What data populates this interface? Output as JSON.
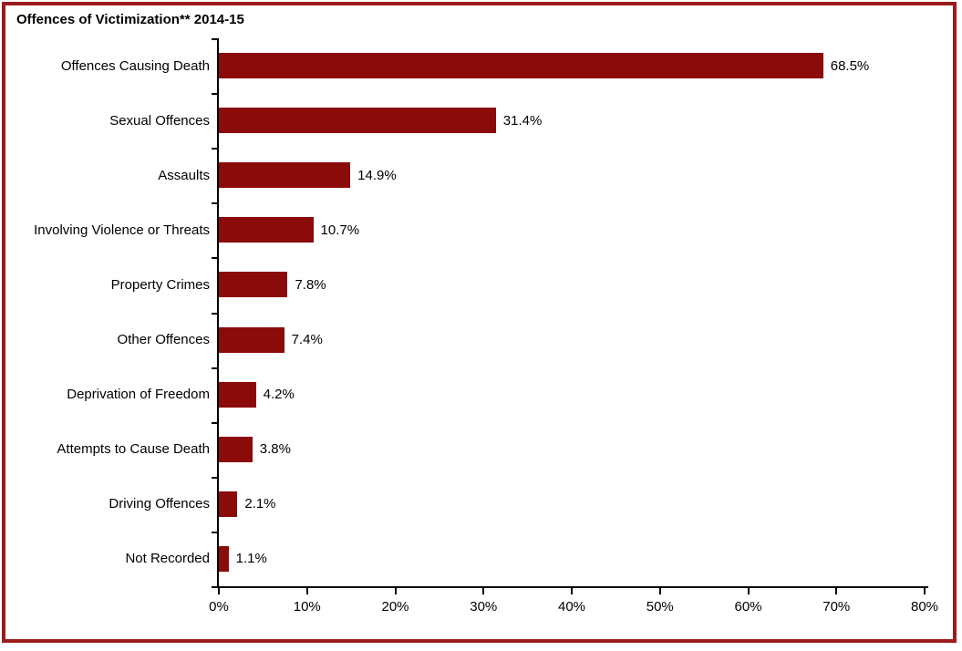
{
  "page": {
    "title": "Offences of Victimization** 2014-15"
  },
  "chart_data": {
    "type": "bar",
    "orientation": "horizontal",
    "title": "Offences of Victimization** 2014-15",
    "categories": [
      "Offences Causing Death",
      "Sexual Offences",
      "Assaults",
      "Involving Violence or Threats",
      "Property Crimes",
      "Other Offences",
      "Deprivation of Freedom",
      "Attempts to Cause Death",
      "Driving Offences",
      "Not Recorded"
    ],
    "values": [
      68.5,
      31.4,
      14.9,
      10.7,
      7.8,
      7.4,
      4.2,
      3.8,
      2.1,
      1.1
    ],
    "value_labels": [
      "68.5%",
      "31.4%",
      "14.9%",
      "10.7%",
      "7.8%",
      "7.4%",
      "4.2%",
      "3.8%",
      "2.1%",
      "1.1%"
    ],
    "xlabel": "",
    "ylabel": "",
    "xlim": [
      0,
      80
    ],
    "x_ticks": [
      0,
      10,
      20,
      30,
      40,
      50,
      60,
      70,
      80
    ],
    "x_tick_labels": [
      "0%",
      "10%",
      "20%",
      "30%",
      "40%",
      "50%",
      "60%",
      "70%",
      "80%"
    ],
    "grid": false,
    "legend": false,
    "bar_color": "#8B0A0A",
    "frame_border_color": "#9B1C1C",
    "axis_color": "#000000",
    "text_color": "#000000",
    "background_color": "#FFFFFF"
  }
}
